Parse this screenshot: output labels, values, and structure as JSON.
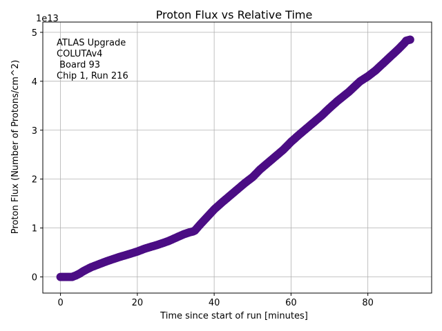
{
  "chart_data": {
    "type": "scatter",
    "title": "Proton Flux vs Relative Time",
    "xlabel": "Time since start of run [minutes]",
    "ylabel": "Proton Flux (Number of Protons/cm^2)",
    "y_offset_text": "1e13",
    "xlim": [
      -4.6,
      96.6
    ],
    "ylim": [
      -0.33,
      5.21
    ],
    "y_multiplier": 10000000000000.0,
    "x_ticks": [
      0,
      20,
      40,
      60,
      80
    ],
    "y_ticks": [
      0,
      1,
      2,
      3,
      4,
      5
    ],
    "x_tick_labels": [
      "0",
      "20",
      "40",
      "60",
      "80"
    ],
    "y_tick_labels": [
      "0",
      "1",
      "2",
      "3",
      "4",
      "5"
    ],
    "grid": true,
    "marker_color": "#4b0d84",
    "annotation": [
      "ATLAS Upgrade",
      "COLUTAv4",
      " Board 93",
      "Chip 1, Run 216"
    ],
    "annotation_position": "top-left",
    "series": [
      {
        "x": [
          0,
          1,
          2,
          3,
          4,
          5,
          6,
          8,
          10,
          12,
          15,
          18,
          20,
          22,
          25,
          28,
          30,
          32,
          33.5,
          34.5,
          35,
          36,
          38,
          40,
          42,
          45,
          48,
          50,
          52,
          55,
          58,
          60,
          62,
          65,
          68,
          70,
          72,
          75,
          78,
          80,
          82,
          85,
          88,
          89.5,
          90,
          91
        ],
        "y": [
          0,
          0,
          0,
          0,
          0.03,
          0.07,
          0.12,
          0.2,
          0.26,
          0.32,
          0.4,
          0.47,
          0.52,
          0.58,
          0.65,
          0.73,
          0.8,
          0.87,
          0.91,
          0.93,
          0.95,
          1.04,
          1.21,
          1.38,
          1.52,
          1.72,
          1.92,
          2.04,
          2.2,
          2.4,
          2.6,
          2.76,
          2.9,
          3.1,
          3.3,
          3.45,
          3.59,
          3.78,
          4.0,
          4.1,
          4.22,
          4.44,
          4.66,
          4.78,
          4.83,
          4.85
        ]
      }
    ]
  }
}
